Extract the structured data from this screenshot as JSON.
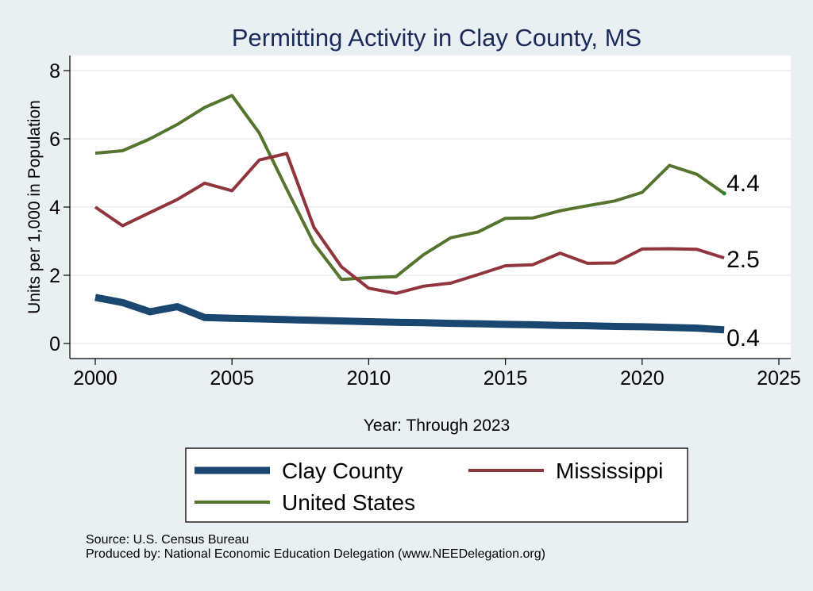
{
  "chart_data": {
    "type": "line",
    "title": "Permitting Activity in Clay County, MS",
    "xlabel": "Year: Through 2023",
    "ylabel": "Units per 1,000 in Population",
    "xlim": [
      2000,
      2025
    ],
    "ylim": [
      0,
      8
    ],
    "xticks": [
      2000,
      2005,
      2010,
      2015,
      2020,
      2025
    ],
    "yticks": [
      0,
      2,
      4,
      6,
      8
    ],
    "grid": true,
    "legend_position": "bottom",
    "x": [
      2000,
      2001,
      2002,
      2003,
      2004,
      2005,
      2006,
      2007,
      2008,
      2009,
      2010,
      2011,
      2012,
      2013,
      2014,
      2015,
      2016,
      2017,
      2018,
      2019,
      2020,
      2021,
      2022,
      2023
    ],
    "series": [
      {
        "name": "Clay County",
        "color": "#1a476f",
        "width": 9,
        "values": [
          1.35,
          1.2,
          0.93,
          1.08,
          0.76,
          0.74,
          0.72,
          0.7,
          0.68,
          0.66,
          0.64,
          0.62,
          0.61,
          0.59,
          0.58,
          0.56,
          0.55,
          0.53,
          0.52,
          0.5,
          0.49,
          0.47,
          0.45,
          0.4
        ],
        "end_label": "0.4"
      },
      {
        "name": "Mississippi",
        "color": "#90353b",
        "width": 4,
        "values": [
          4.0,
          3.45,
          3.84,
          4.22,
          4.7,
          4.48,
          5.38,
          5.57,
          3.4,
          2.25,
          1.62,
          1.47,
          1.68,
          1.77,
          2.02,
          2.28,
          2.31,
          2.65,
          2.35,
          2.36,
          2.77,
          2.78,
          2.76,
          2.51
        ],
        "end_label": "2.5"
      },
      {
        "name": "United States",
        "color": "#55752f",
        "width": 4,
        "values": [
          5.58,
          5.65,
          6.0,
          6.42,
          6.92,
          7.27,
          6.17,
          4.53,
          2.93,
          1.88,
          1.93,
          1.96,
          2.6,
          3.1,
          3.27,
          3.67,
          3.68,
          3.89,
          4.04,
          4.18,
          4.43,
          5.22,
          4.96,
          4.4
        ],
        "end_label": "4.4"
      }
    ],
    "source": "Source: U.S. Census Bureau",
    "producer": "Produced by: National Economic Education Delegation (www.NEEDelegation.org)"
  }
}
